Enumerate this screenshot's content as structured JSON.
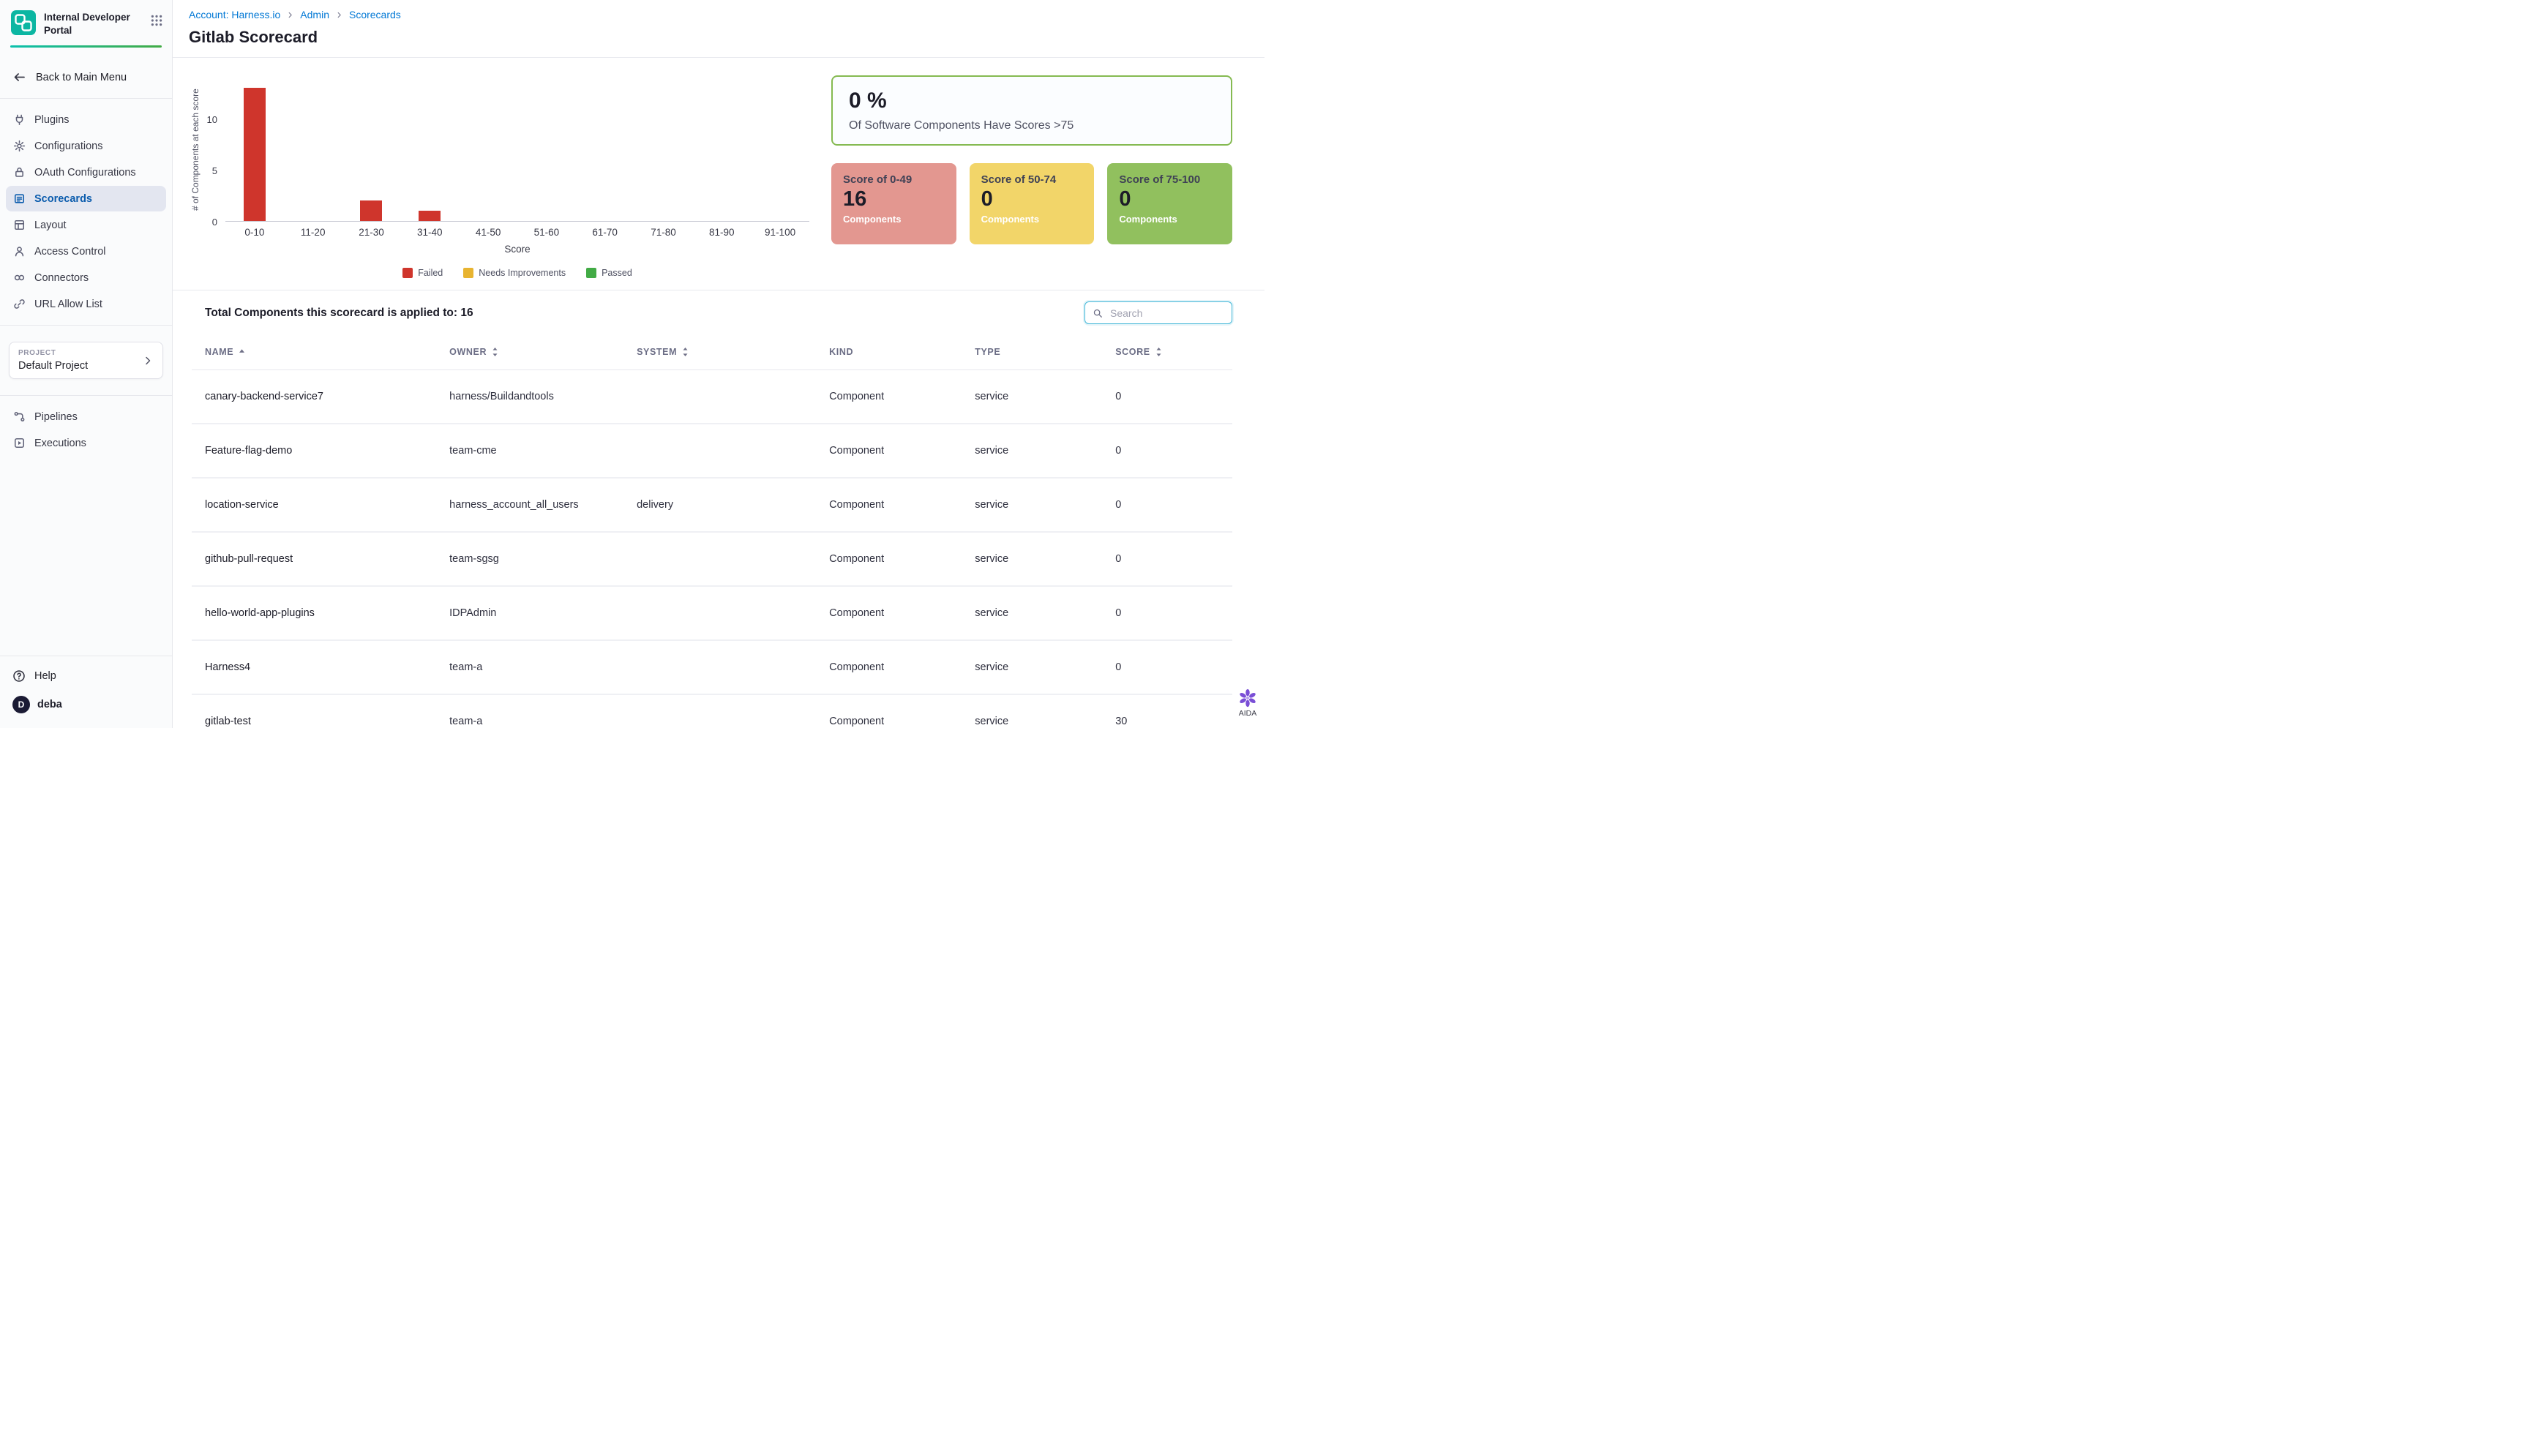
{
  "app": {
    "title": "Internal Developer Portal"
  },
  "colors": {
    "link": "#0278d5",
    "sidebar_active": "#0b5cad",
    "accent_teal": "#0bc0ad"
  },
  "sidebar": {
    "back_label": "Back to Main Menu",
    "items": [
      {
        "label": "Plugins",
        "active": false
      },
      {
        "label": "Configurations",
        "active": false
      },
      {
        "label": "OAuth Configurations",
        "active": false
      },
      {
        "label": "Scorecards",
        "active": true
      },
      {
        "label": "Layout",
        "active": false
      },
      {
        "label": "Access Control",
        "active": false
      },
      {
        "label": "Connectors",
        "active": false
      },
      {
        "label": "URL Allow List",
        "active": false
      }
    ],
    "project": {
      "label": "PROJECT",
      "name": "Default Project"
    },
    "secondary_items": [
      {
        "label": "Pipelines"
      },
      {
        "label": "Executions"
      }
    ],
    "help_label": "Help",
    "user": {
      "initial": "D",
      "name": "deba"
    }
  },
  "header": {
    "breadcrumb": [
      {
        "label": "Account: Harness.io"
      },
      {
        "label": "Admin"
      },
      {
        "label": "Scorecards"
      }
    ],
    "title": "Gitlab Scorecard"
  },
  "chart_data": {
    "type": "bar",
    "title": "",
    "categories": [
      "0-10",
      "11-20",
      "21-30",
      "31-40",
      "41-50",
      "51-60",
      "61-70",
      "71-80",
      "81-90",
      "91-100"
    ],
    "values": [
      13,
      0,
      2,
      1,
      0,
      0,
      0,
      0,
      0,
      0
    ],
    "xlabel": "Score",
    "ylabel": "# of Components at each score",
    "yticks": [
      0,
      5,
      10
    ],
    "ylim": [
      0,
      14
    ],
    "grid": false,
    "bar_color": "#cf352c",
    "legend_position": "bottom",
    "legend": [
      {
        "label": "Failed",
        "color": "#cf352c"
      },
      {
        "label": "Needs Improvements",
        "color": "#e8b430"
      },
      {
        "label": "Passed",
        "color": "#42ab45"
      }
    ]
  },
  "summary": {
    "percent": "0 %",
    "caption": "Of Software Components Have Scores >75",
    "border_color": "#85ba51",
    "tiles": [
      {
        "label": "Score of 0-49",
        "value": "16",
        "sublabel": "Components",
        "color": "#e39790"
      },
      {
        "label": "Score of 50-74",
        "value": "0",
        "sublabel": "Components",
        "color": "#f2d569"
      },
      {
        "label": "Score of 75-100",
        "value": "0",
        "sublabel": "Components",
        "color": "#91c05e"
      }
    ]
  },
  "table_section": {
    "total_label": "Total Components this scorecard is applied to: 16",
    "search_placeholder": "Search",
    "columns": [
      {
        "label": "NAME",
        "sort": "asc"
      },
      {
        "label": "OWNER",
        "sort": "both"
      },
      {
        "label": "SYSTEM",
        "sort": "both"
      },
      {
        "label": "KIND",
        "sort": "none"
      },
      {
        "label": "TYPE",
        "sort": "none"
      },
      {
        "label": "SCORE",
        "sort": "both"
      }
    ],
    "rows": [
      {
        "name": "canary-backend-service7",
        "owner": "harness/Buildandtools",
        "system": "",
        "kind": "Component",
        "type": "service",
        "score": "0"
      },
      {
        "name": "Feature-flag-demo",
        "owner": "team-cme",
        "system": "",
        "kind": "Component",
        "type": "service",
        "score": "0"
      },
      {
        "name": "location-service",
        "owner": "harness_account_all_users",
        "system": "delivery",
        "kind": "Component",
        "type": "service",
        "score": "0"
      },
      {
        "name": "github-pull-request",
        "owner": "team-sgsg",
        "system": "",
        "kind": "Component",
        "type": "service",
        "score": "0"
      },
      {
        "name": "hello-world-app-plugins",
        "owner": "IDPAdmin",
        "system": "",
        "kind": "Component",
        "type": "service",
        "score": "0"
      },
      {
        "name": "Harness4",
        "owner": "team-a",
        "system": "",
        "kind": "Component",
        "type": "service",
        "score": "0"
      },
      {
        "name": "gitlab-test",
        "owner": "team-a",
        "system": "",
        "kind": "Component",
        "type": "service",
        "score": "30"
      }
    ]
  },
  "aida": {
    "label": "AIDA"
  }
}
